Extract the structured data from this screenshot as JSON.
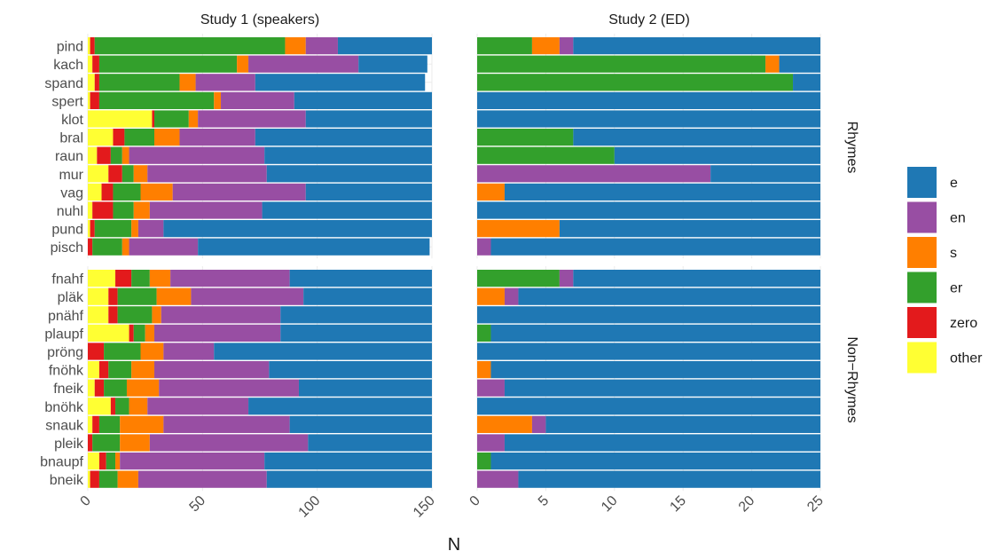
{
  "chart_data": {
    "type": "bar",
    "orientation": "horizontal",
    "stacked": true,
    "xlabel": "N",
    "facet_columns": [
      {
        "title": "Study 1 (speakers)",
        "xlim": [
          0,
          150
        ],
        "ticks": [
          0,
          50,
          100,
          150
        ]
      },
      {
        "title": "Study 2 (ED)",
        "xlim": [
          0,
          25
        ],
        "ticks": [
          0,
          5,
          10,
          15,
          20,
          25
        ]
      }
    ],
    "facet_rows": [
      "Rhymes",
      "Non−Rhymes"
    ],
    "stack_order": [
      "other",
      "zero",
      "er",
      "s",
      "en",
      "e"
    ],
    "legend": {
      "placement": "right",
      "items": [
        {
          "name": "e",
          "color": "#1f78b4"
        },
        {
          "name": "en",
          "color": "#984ea3"
        },
        {
          "name": "s",
          "color": "#ff7f00"
        },
        {
          "name": "er",
          "color": "#33a02c"
        },
        {
          "name": "zero",
          "color": "#e31a1c"
        },
        {
          "name": "other",
          "color": "#ffff33"
        }
      ]
    },
    "panels": [
      {
        "column": 0,
        "row": 0,
        "categories": [
          "pind",
          "kach",
          "spand",
          "spert",
          "klot",
          "bral",
          "raun",
          "mur",
          "vag",
          "nuhl",
          "pund",
          "pisch"
        ],
        "series": [
          {
            "name": "other",
            "values": [
              1,
              2,
              3,
              1,
              28,
              11,
              4,
              9,
              6,
              2,
              1,
              0
            ]
          },
          {
            "name": "zero",
            "values": [
              2,
              3,
              2,
              4,
              1,
              5,
              6,
              6,
              5,
              9,
              2,
              2
            ]
          },
          {
            "name": "er",
            "values": [
              83,
              60,
              35,
              50,
              15,
              13,
              5,
              5,
              12,
              9,
              16,
              13
            ]
          },
          {
            "name": "s",
            "values": [
              9,
              5,
              7,
              3,
              4,
              11,
              3,
              6,
              14,
              7,
              3,
              3
            ]
          },
          {
            "name": "en",
            "values": [
              14,
              48,
              26,
              32,
              47,
              33,
              59,
              52,
              58,
              49,
              11,
              30
            ]
          },
          {
            "name": "e",
            "values": [
              41,
              30,
              74,
              60,
              55,
              77,
              73,
              72,
              55,
              74,
              117,
              101
            ]
          }
        ]
      },
      {
        "column": 1,
        "row": 0,
        "categories": [
          "pind",
          "kach",
          "spand",
          "spert",
          "klot",
          "bral",
          "raun",
          "mur",
          "vag",
          "nuhl",
          "pund",
          "pisch"
        ],
        "series": [
          {
            "name": "other",
            "values": [
              0,
              0,
              0,
              0,
              0,
              0,
              0,
              0,
              0,
              0,
              0,
              0
            ]
          },
          {
            "name": "zero",
            "values": [
              0,
              0,
              0,
              0,
              0,
              0,
              0,
              0,
              0,
              0,
              0,
              0
            ]
          },
          {
            "name": "er",
            "values": [
              4,
              21,
              23,
              0,
              0,
              7,
              10,
              0,
              0,
              0,
              0,
              0
            ]
          },
          {
            "name": "s",
            "values": [
              2,
              1,
              0,
              0,
              0,
              0,
              0,
              0,
              2,
              0,
              6,
              0
            ]
          },
          {
            "name": "en",
            "values": [
              1,
              0,
              0,
              0,
              0,
              0,
              0,
              17,
              0,
              0,
              0,
              1
            ]
          },
          {
            "name": "e",
            "values": [
              18,
              3,
              2,
              25,
              25,
              18,
              15,
              8,
              23,
              25,
              19,
              24
            ]
          }
        ]
      },
      {
        "column": 0,
        "row": 1,
        "categories": [
          "fnahf",
          "pläk",
          "pnähf",
          "plaupf",
          "pröng",
          "fnöhk",
          "fneik",
          "bnöhk",
          "snauk",
          "pleik",
          "bnaupf",
          "bneik"
        ],
        "series": [
          {
            "name": "other",
            "values": [
              12,
              9,
              9,
              18,
              0,
              5,
              3,
              10,
              2,
              0,
              5,
              1
            ]
          },
          {
            "name": "zero",
            "values": [
              7,
              4,
              4,
              2,
              7,
              4,
              4,
              2,
              3,
              2,
              3,
              4
            ]
          },
          {
            "name": "er",
            "values": [
              8,
              17,
              15,
              5,
              16,
              10,
              10,
              6,
              9,
              12,
              4,
              8
            ]
          },
          {
            "name": "s",
            "values": [
              9,
              15,
              4,
              4,
              10,
              10,
              14,
              8,
              19,
              13,
              2,
              9
            ]
          },
          {
            "name": "en",
            "values": [
              52,
              49,
              52,
              55,
              22,
              50,
              61,
              44,
              55,
              69,
              63,
              56
            ]
          },
          {
            "name": "e",
            "values": [
              62,
              56,
              66,
              66,
              95,
              71,
              58,
              80,
              62,
              54,
              73,
              72
            ]
          }
        ]
      },
      {
        "column": 1,
        "row": 1,
        "categories": [
          "fnahf",
          "pläk",
          "pnähf",
          "plaupf",
          "pröng",
          "fnöhk",
          "fneik",
          "bnöhk",
          "snauk",
          "pleik",
          "bnaupf",
          "bneik"
        ],
        "series": [
          {
            "name": "other",
            "values": [
              0,
              0,
              0,
              0,
              0,
              0,
              0,
              0,
              0,
              0,
              0,
              0
            ]
          },
          {
            "name": "zero",
            "values": [
              0,
              0,
              0,
              0,
              0,
              0,
              0,
              0,
              0,
              0,
              0,
              0
            ]
          },
          {
            "name": "er",
            "values": [
              6,
              0,
              0,
              1,
              0,
              0,
              0,
              0,
              0,
              0,
              1,
              0
            ]
          },
          {
            "name": "s",
            "values": [
              0,
              2,
              0,
              0,
              0,
              1,
              0,
              0,
              4,
              0,
              0,
              0
            ]
          },
          {
            "name": "en",
            "values": [
              1,
              1,
              0,
              0,
              0,
              0,
              2,
              0,
              1,
              2,
              0,
              3
            ]
          },
          {
            "name": "e",
            "values": [
              18,
              22,
              25,
              24,
              25,
              24,
              23,
              25,
              20,
              23,
              24,
              22
            ]
          }
        ]
      }
    ]
  }
}
